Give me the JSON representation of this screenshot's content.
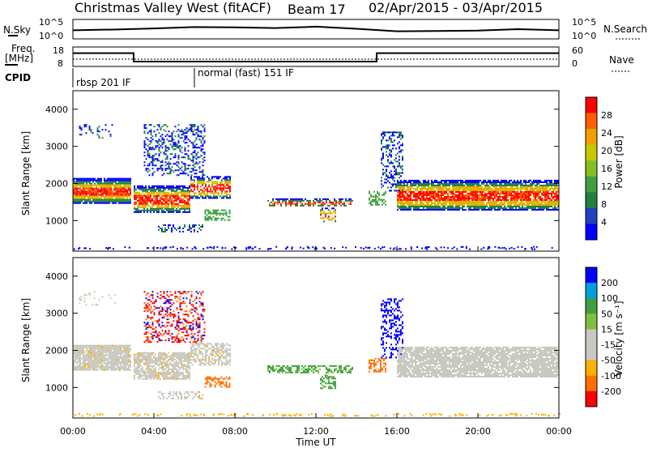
{
  "header": {
    "station": "Christmas Valley West (fitACF)",
    "beam": "Beam 17",
    "date_range": "02/Apr/2015 - 03/Apr/2015"
  },
  "colors": {
    "power": [
      "#0000ff",
      "#2040c0",
      "#208040",
      "#40a040",
      "#80c020",
      "#c8c800",
      "#f0a000",
      "#ff6000",
      "#ff0000"
    ],
    "velocity": [
      "#0000ff",
      "#00a0e0",
      "#40a040",
      "#80c040",
      "#c8c8c0",
      "#c8c8c0",
      "#ffb000",
      "#ff7000",
      "#ff0000"
    ]
  },
  "chart_data": [
    {
      "type": "line",
      "name": "noise-panel",
      "left_label": "N.Sky",
      "right_label": "N.Search",
      "left_ticks": [
        "10^5",
        "10^0"
      ],
      "right_ticks": [
        "10^5",
        "10^0"
      ],
      "x": [
        0,
        2,
        4,
        6,
        8,
        10,
        12,
        14,
        16,
        18,
        20,
        22,
        24
      ],
      "series": [
        {
          "values": [
            2.2,
            2.4,
            2.7,
            3.1,
            3.0,
            2.8,
            3.2,
            2.6,
            1.9,
            2.0,
            2.1,
            2.5,
            2.2
          ]
        }
      ],
      "ylim": [
        0,
        5
      ]
    },
    {
      "type": "line",
      "name": "frequency-panel",
      "left_label": "Freq.\n[MHz]",
      "right_label": "Nave",
      "left_ticks": [
        "18",
        "8"
      ],
      "right_ticks": [
        "60",
        "0"
      ],
      "x": [
        0,
        3.0,
        3.0,
        15.0,
        15.0,
        24
      ],
      "series": [
        {
          "name": "freq",
          "values": [
            15.0,
            15.0,
            10.3,
            10.3,
            15.0,
            15.0
          ]
        }
      ],
      "ylim": [
        8,
        18
      ]
    },
    {
      "type": "table",
      "name": "cpid-panel",
      "label": "CPID",
      "segments": [
        {
          "start": 0.0,
          "label": "rbsp 201 IF"
        },
        {
          "start": 6.0,
          "label": "normal (fast) 151 IF"
        }
      ]
    },
    {
      "type": "heatmap",
      "name": "power-panel",
      "ylabel": "Slant Range [km]",
      "xlim": [
        0,
        24
      ],
      "ylim": [
        200,
        4500
      ],
      "yticks": [
        1000,
        2000,
        3000,
        4000
      ],
      "colorbar": {
        "label": "Power [dB]",
        "ticks": [
          "4",
          "8",
          "12",
          "16",
          "20",
          "24",
          "28"
        ]
      }
    },
    {
      "type": "heatmap",
      "name": "velocity-panel",
      "ylabel": "Slant Range [km]",
      "xlabel": "Time UT",
      "xlim": [
        0,
        24
      ],
      "ylim": [
        200,
        4500
      ],
      "yticks": [
        1000,
        2000,
        3000,
        4000
      ],
      "xticks": [
        "00:00",
        "04:00",
        "08:00",
        "12:00",
        "16:00",
        "20:00",
        "00:00"
      ],
      "colorbar": {
        "label": "Velocity [m s⁻¹]",
        "ticks": [
          "200",
          "100",
          "50",
          "15",
          "-15",
          "-50",
          "-100",
          "-200"
        ]
      }
    }
  ]
}
